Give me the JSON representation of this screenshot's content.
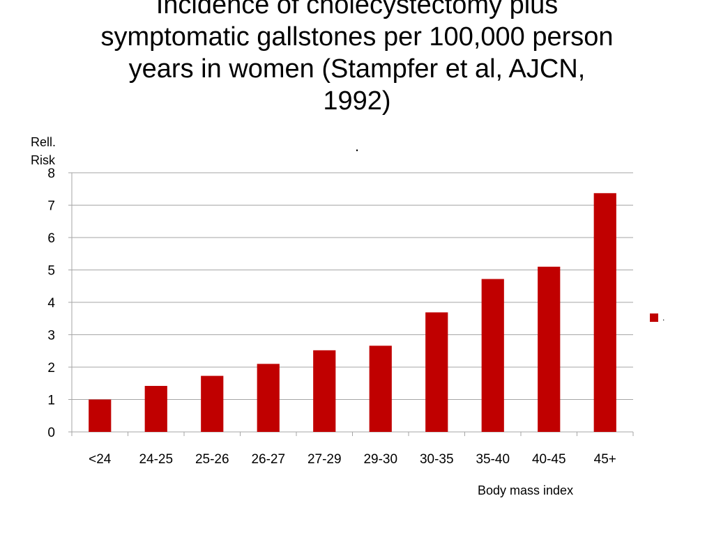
{
  "slide": {
    "title_lines": [
      "Incidence of cholecystectomy plus",
      "symptomatic gallstones per 100,000 person",
      "years in women (Stampfer et al, AJCN,",
      "1992)"
    ]
  },
  "chart_data": {
    "type": "bar",
    "title": ".",
    "categories": [
      "<24",
      "24-25",
      "25-26",
      "26-27",
      "27-29",
      "29-30",
      "30-35",
      "35-40",
      "40-45",
      "45+"
    ],
    "series": [
      {
        "name": ".",
        "color": "#c00000",
        "values": [
          1.0,
          1.42,
          1.73,
          2.1,
          2.52,
          2.66,
          3.69,
          4.72,
          5.1,
          7.37
        ]
      }
    ],
    "xlabel": "Body mass index",
    "ylabel": "Rell. Risk",
    "ylim": [
      0,
      8
    ],
    "yticks": [
      "0",
      "1",
      "2",
      "3",
      "4",
      "5",
      "6",
      "7",
      "8"
    ],
    "grid": true,
    "legend_position": "right",
    "gridline_color": "#a6a6a6"
  }
}
